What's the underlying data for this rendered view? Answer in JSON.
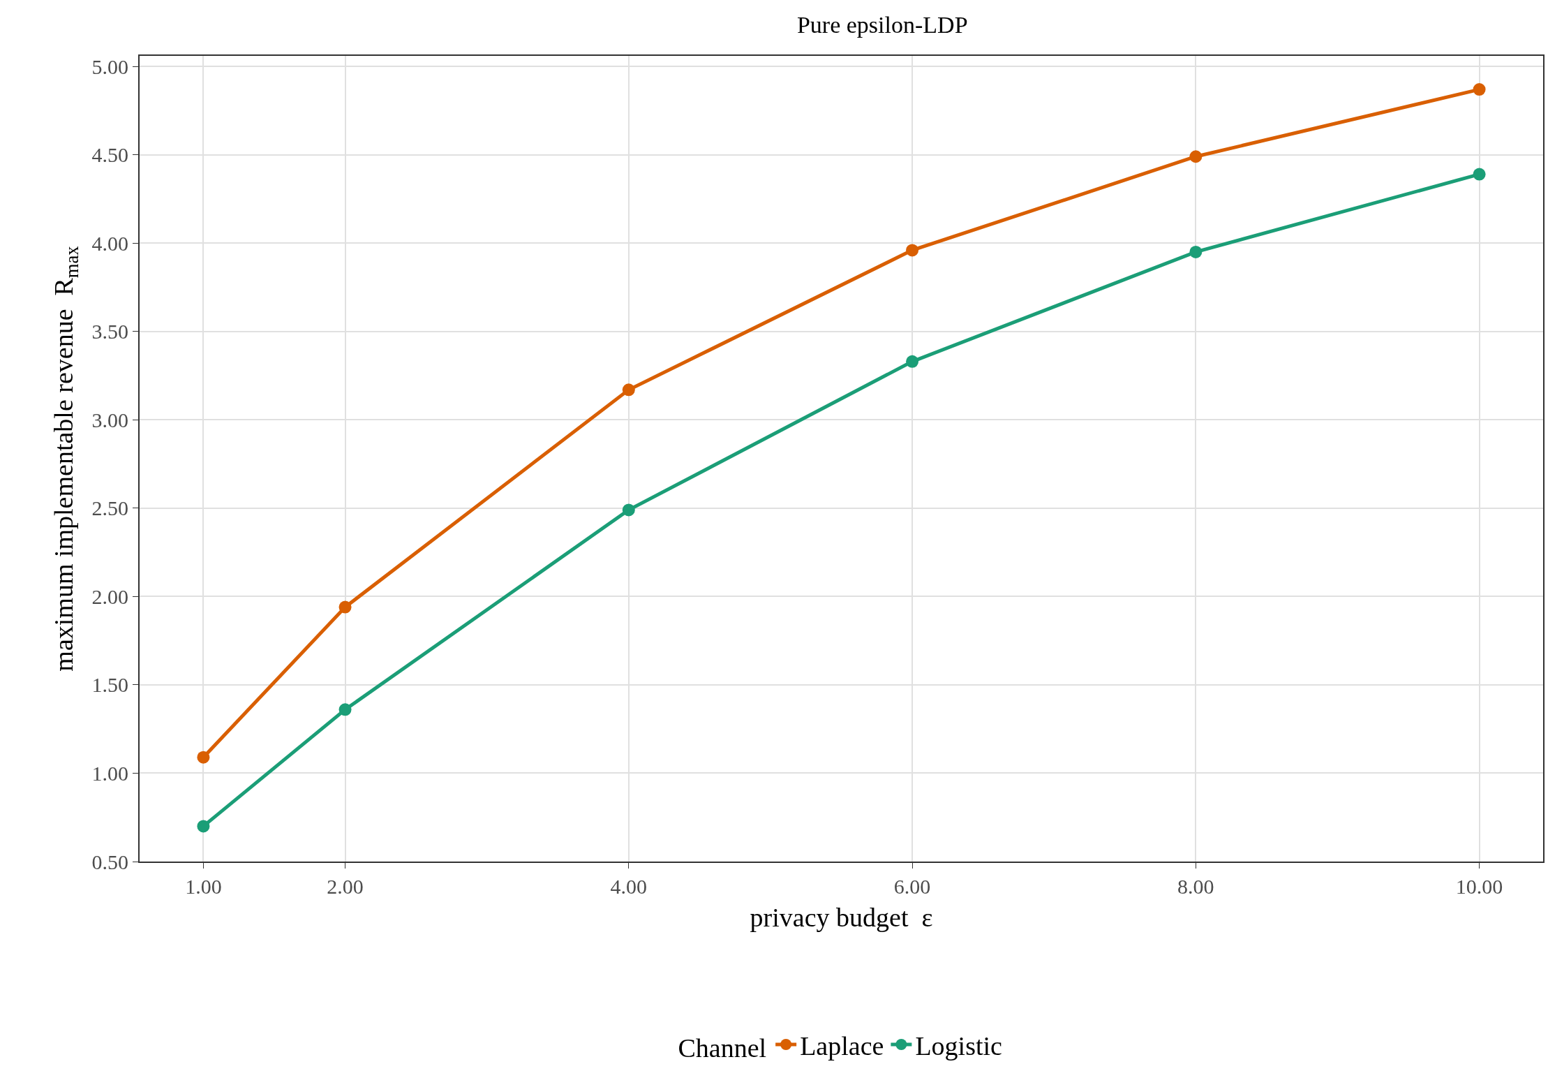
{
  "chart_data": {
    "type": "line",
    "title": "Pure epsilon-LDP",
    "xlabel": "privacy budget  ε",
    "ylabel": "maximum implementable revenue  R$_{max}$",
    "legend_title": "Channel",
    "x": [
      1,
      2,
      4,
      6,
      8,
      10
    ],
    "series": [
      {
        "name": "Laplace",
        "color": "#d95f02",
        "values": [
          1.09,
          1.94,
          3.17,
          3.96,
          4.49,
          4.87
        ]
      },
      {
        "name": "Logistic",
        "color": "#1b9e77",
        "values": [
          0.7,
          1.36,
          2.49,
          3.33,
          3.95,
          4.39
        ]
      }
    ],
    "xlim": [
      0.55,
      10.45
    ],
    "ylim": [
      0.5,
      5.06
    ],
    "xticks": [
      {
        "value": 1,
        "label": "1.00"
      },
      {
        "value": 2,
        "label": "2.00"
      },
      {
        "value": 4,
        "label": "4.00"
      },
      {
        "value": 6,
        "label": "6.00"
      },
      {
        "value": 8,
        "label": "8.00"
      },
      {
        "value": 10,
        "label": "10.00"
      }
    ],
    "yticks": [
      {
        "value": 0.5,
        "label": "0.50"
      },
      {
        "value": 1,
        "label": "1.00"
      },
      {
        "value": 1.5,
        "label": "1.50"
      },
      {
        "value": 2,
        "label": "2.00"
      },
      {
        "value": 2.5,
        "label": "2.50"
      },
      {
        "value": 3,
        "label": "3.00"
      },
      {
        "value": 3.5,
        "label": "3.50"
      },
      {
        "value": 4,
        "label": "4.00"
      },
      {
        "value": 4.5,
        "label": "4.50"
      },
      {
        "value": 5,
        "label": "5.00"
      }
    ],
    "grid": true,
    "legend": "bottom",
    "marker": "circle",
    "line_style": "solid"
  }
}
